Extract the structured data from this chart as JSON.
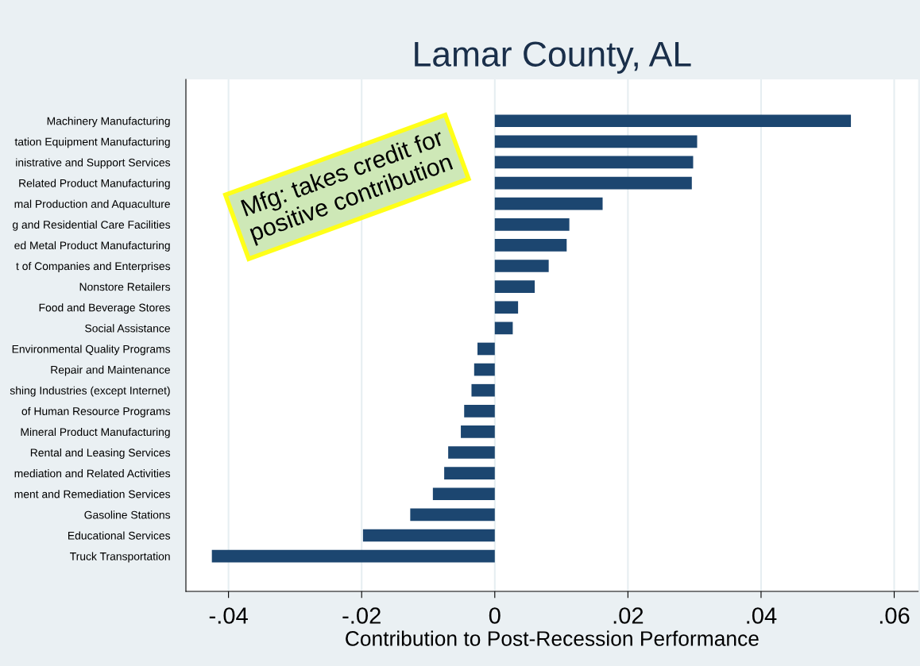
{
  "chart_data": {
    "type": "bar",
    "orientation": "horizontal",
    "title": "Lamar County, AL",
    "xlabel": "Contribution to Post-Recession Performance",
    "categories": [
      "Machinery Manufacturing",
      "tation Equipment Manufacturing",
      "inistrative and Support Services",
      "Related Product Manufacturing",
      "mal Production and Aquaculture",
      "g and Residential Care Facilities",
      "ed Metal Product Manufacturing",
      "t of Companies and Enterprises",
      "Nonstore Retailers",
      "Food and Beverage Stores",
      "Social Assistance",
      "Environmental Quality Programs",
      "Repair and Maintenance",
      "shing Industries (except Internet)",
      "of Human Resource Programs",
      "Mineral Product Manufacturing",
      "Rental and Leasing Services",
      "mediation and Related Activities",
      "ment and Remediation Services",
      "Gasoline Stations",
      "Educational Services",
      "Truck Transportation"
    ],
    "values": [
      0.0535,
      0.0304,
      0.0298,
      0.0296,
      0.0162,
      0.0112,
      0.0108,
      0.0081,
      0.006,
      0.0035,
      0.0027,
      -0.0026,
      -0.0031,
      -0.0035,
      -0.0046,
      -0.0051,
      -0.007,
      -0.0076,
      -0.0093,
      -0.0127,
      -0.0198,
      -0.0425
    ],
    "color": "#1c4670",
    "xlim": [
      -0.0464,
      0.0636
    ],
    "xticks": [
      {
        "value": -0.04,
        "label": "-.04"
      },
      {
        "value": -0.02,
        "label": "-.02"
      },
      {
        "value": 0,
        "label": "0"
      },
      {
        "value": 0.02,
        "label": ".02"
      },
      {
        "value": 0.04,
        "label": ".04"
      },
      {
        "value": 0.06,
        "label": ".06"
      }
    ],
    "grid": "x",
    "legend": false,
    "annotations": [
      "Mfg: takes credit for\npositive contribution"
    ]
  }
}
